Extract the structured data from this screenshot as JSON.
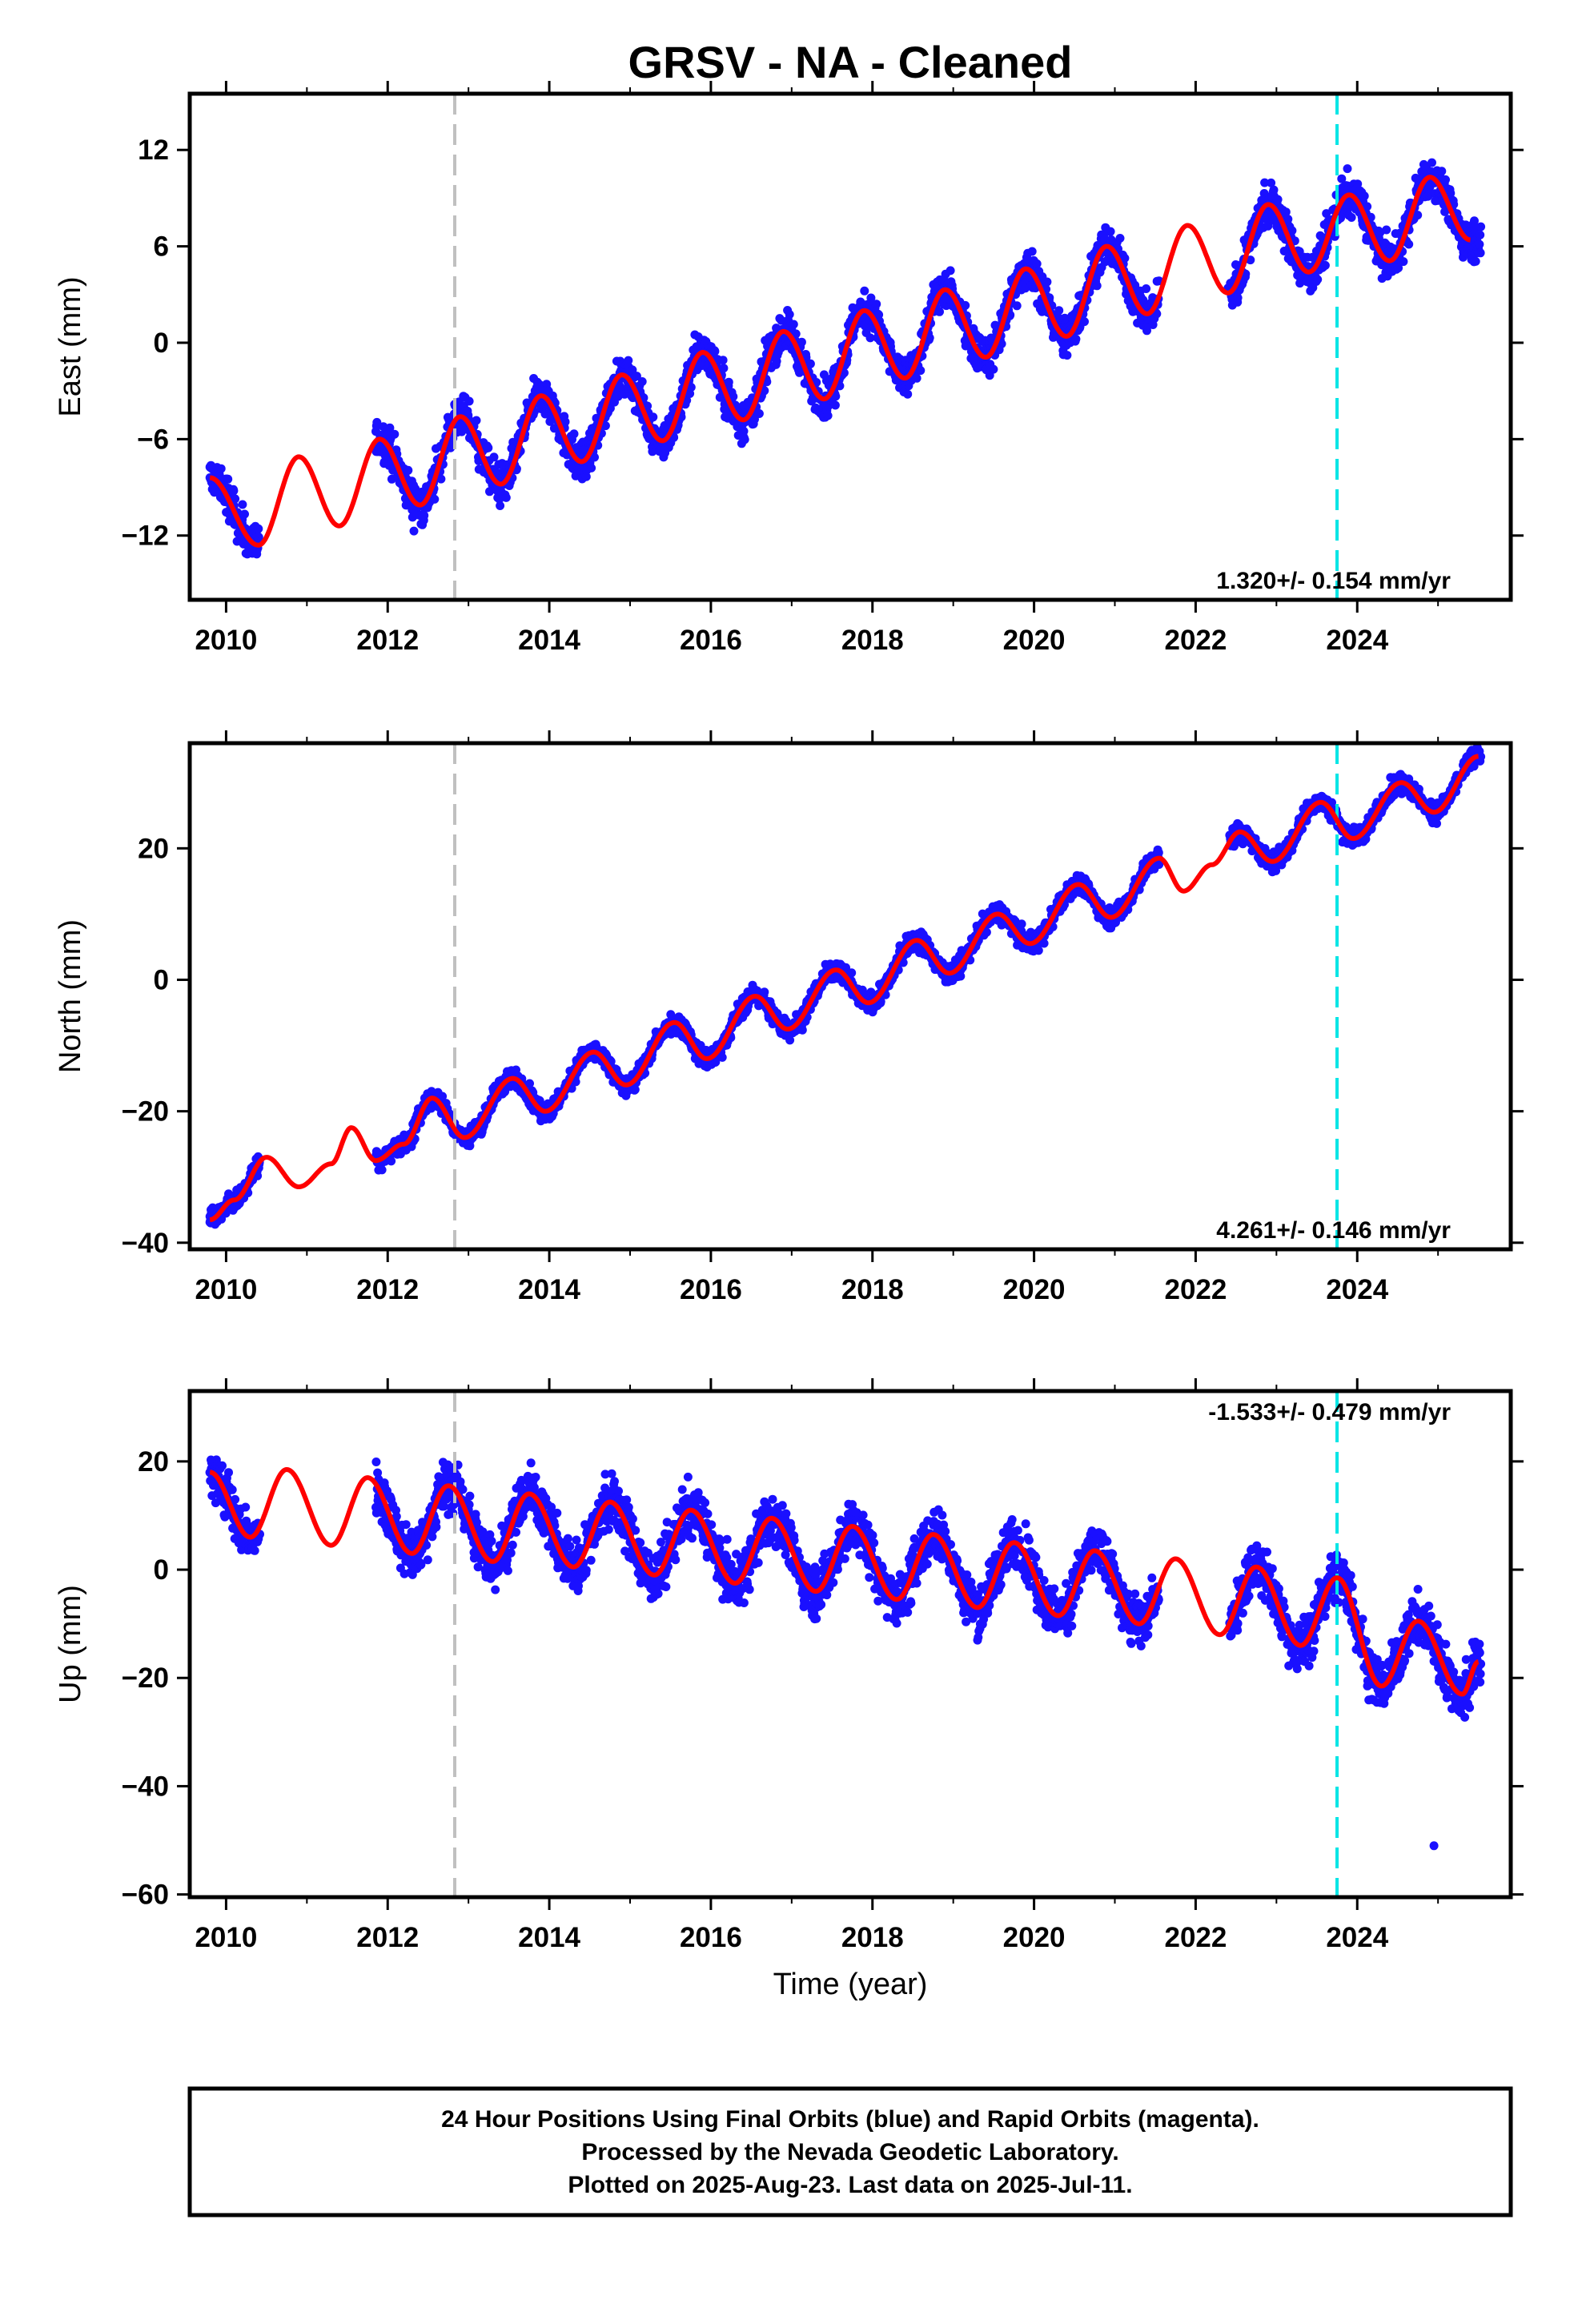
{
  "title": "GRSV  - NA - Cleaned",
  "colors": {
    "points": "#1a10ff",
    "model": "#ff0000",
    "event_gray": "#c0c0c0",
    "event_cyan": "#00e5e5"
  },
  "events": [
    {
      "year": 2012.83,
      "color": "#c0c0c0"
    },
    {
      "year": 2023.75,
      "color": "#00e5e5"
    }
  ],
  "x_axis": {
    "range": [
      2009.55,
      2025.9
    ],
    "ticks": [
      "2010",
      "2012",
      "2014",
      "2016",
      "2018",
      "2020",
      "2022",
      "2024"
    ],
    "label": "Time (year)"
  },
  "panels": [
    {
      "id": "east",
      "ylabel": "East (mm)",
      "ylim": [
        -16,
        15.5
      ],
      "yticks": [
        "12",
        "6",
        "0",
        "−6",
        "−12"
      ],
      "rate_text": "1.320+/- 0.154 mm/yr",
      "rate_pos": "bottom-right"
    },
    {
      "id": "north",
      "ylabel": "North (mm)",
      "ylim": [
        -41,
        36
      ],
      "yticks": [
        "20",
        "0",
        "−20",
        "−40"
      ],
      "rate_text": "4.261+/- 0.146 mm/yr",
      "rate_pos": "bottom-right"
    },
    {
      "id": "up",
      "ylabel": "Up (mm)",
      "ylim": [
        -60.5,
        33
      ],
      "yticks": [
        "20",
        "0",
        "−20",
        "−40",
        "−60"
      ],
      "rate_text": "-1.533+/- 0.479 mm/yr",
      "rate_pos": "top-right"
    }
  ],
  "footer": {
    "line1": "24 Hour Positions Using Final Orbits (blue) and Rapid Orbits (magenta).",
    "line2": "Processed by the Nevada Geodetic Laboratory.",
    "line3": "Plotted on 2025-Aug-23. Last data on 2025-Jul-11."
  },
  "chart_data": [
    {
      "type": "scatter",
      "title": "GRSV  - NA - Cleaned",
      "ylabel": "East (mm)",
      "xlabel": "",
      "ylim": [
        -16,
        15.5
      ],
      "grid": false,
      "series": [
        {
          "name": "24 Hour Positions Using Final Orbits (blue)",
          "x": [
            2009.8,
            2010.0,
            2010.2,
            2010.4,
            2012.0,
            2012.4,
            2012.9,
            2013.4,
            2013.9,
            2014.4,
            2014.9,
            2015.4,
            2015.9,
            2016.4,
            2016.9,
            2017.4,
            2017.9,
            2018.4,
            2018.9,
            2019.4,
            2019.9,
            2020.4,
            2020.9,
            2021.4,
            2022.4,
            2022.9,
            2023.4,
            2023.9,
            2024.4,
            2024.9,
            2025.4
          ],
          "y": [
            -8.4,
            -9.0,
            -11.0,
            -12.5,
            -6.4,
            -10.0,
            -5.0,
            -8.7,
            -3.6,
            -7.2,
            -2.2,
            -6.2,
            -0.8,
            -5.0,
            0.4,
            -3.6,
            1.8,
            -2.4,
            3.2,
            -1.0,
            4.6,
            0.4,
            6.0,
            1.8,
            3.4,
            8.6,
            4.4,
            9.4,
            5.2,
            10.4,
            6.4
          ]
        }
      ],
      "model": {
        "x": [
          2009.8,
          2010.4,
          2010.9,
          2011.4,
          2011.9,
          2012.4,
          2012.9,
          2013.4,
          2013.9,
          2014.4,
          2014.9,
          2015.4,
          2015.9,
          2016.4,
          2016.9,
          2017.4,
          2017.9,
          2018.4,
          2018.9,
          2019.4,
          2019.9,
          2020.4,
          2020.9,
          2021.4,
          2021.9,
          2022.4,
          2022.9,
          2023.4,
          2023.9,
          2024.4,
          2024.9,
          2025.4
        ],
        "y": [
          -8.4,
          -12.6,
          -7.1,
          -11.4,
          -6.0,
          -10.1,
          -4.6,
          -8.8,
          -3.3,
          -7.4,
          -2.0,
          -6.1,
          -0.6,
          -4.8,
          0.7,
          -3.5,
          2.0,
          -2.2,
          3.3,
          -0.9,
          4.6,
          0.4,
          6.0,
          1.8,
          7.3,
          3.1,
          8.6,
          4.4,
          9.2,
          5.1,
          10.3,
          6.4
        ]
      },
      "annotations": [
        "1.320+/- 0.154 mm/yr"
      ]
    },
    {
      "type": "scatter",
      "ylabel": "North (mm)",
      "xlabel": "",
      "ylim": [
        -41,
        36
      ],
      "grid": false,
      "series": [
        {
          "name": "24 Hour Positions Using Final Orbits (blue)",
          "x": [
            2009.8,
            2010.2,
            2012.0,
            2012.5,
            2013.0,
            2013.5,
            2014.0,
            2014.5,
            2015.0,
            2015.5,
            2016.0,
            2016.5,
            2017.0,
            2017.5,
            2018.0,
            2018.5,
            2019.0,
            2019.5,
            2020.0,
            2020.5,
            2021.0,
            2021.5,
            2022.5,
            2023.0,
            2023.5,
            2024.0,
            2024.5,
            2025.0,
            2025.5
          ],
          "y": [
            -36.0,
            -33.0,
            -26.0,
            -18.0,
            -23.5,
            -15.5,
            -19.5,
            -11.5,
            -15.5,
            -7.0,
            -11.5,
            -2.5,
            -7.0,
            2.0,
            -3.0,
            6.0,
            1.5,
            10.0,
            5.5,
            14.5,
            10.0,
            18.5,
            22.5,
            18.0,
            27.0,
            21.0,
            30.5,
            25.5,
            34.0
          ]
        }
      ],
      "model": {
        "x": [
          2009.8,
          2010.1,
          2010.5,
          2010.9,
          2011.3,
          2011.55,
          2011.85,
          2012.2,
          2012.55,
          2012.95,
          2013.55,
          2013.95,
          2014.55,
          2014.95,
          2015.55,
          2015.95,
          2016.55,
          2016.95,
          2017.55,
          2017.95,
          2018.55,
          2018.95,
          2019.55,
          2019.95,
          2020.55,
          2020.95,
          2021.55,
          2021.85,
          2022.2,
          2022.55,
          2022.95,
          2023.55,
          2023.95,
          2024.55,
          2024.95,
          2025.5
        ],
        "y": [
          -36.5,
          -33.5,
          -27.0,
          -31.5,
          -28.0,
          -22.5,
          -27.5,
          -25.0,
          -18.0,
          -24.0,
          -15.0,
          -20.0,
          -11.0,
          -16.0,
          -6.5,
          -12.0,
          -2.5,
          -7.5,
          1.5,
          -3.5,
          6.0,
          1.0,
          10.0,
          5.5,
          14.5,
          9.5,
          18.5,
          13.5,
          17.5,
          22.5,
          18.0,
          27.0,
          21.5,
          30.0,
          25.5,
          34.0
        ]
      },
      "annotations": [
        "4.261+/- 0.146 mm/yr"
      ]
    },
    {
      "type": "scatter",
      "ylabel": "Up (mm)",
      "xlabel": "Time (year)",
      "ylim": [
        -60.5,
        33
      ],
      "grid": false,
      "series": [
        {
          "name": "24 Hour Positions Using Final Orbits (blue)",
          "x": [
            2009.8,
            2010.3,
            2012.4,
            2012.8,
            2013.3,
            2013.7,
            2014.3,
            2014.7,
            2015.3,
            2015.7,
            2016.3,
            2016.7,
            2017.3,
            2017.7,
            2018.3,
            2018.7,
            2019.3,
            2019.7,
            2020.3,
            2020.7,
            2021.3,
            2022.7,
            2023.3,
            2023.7,
            2024.3,
            2024.7,
            2024.95,
            2025.3
          ],
          "y": [
            18.0,
            6.0,
            3.0,
            15.0,
            1.0,
            14.0,
            0.0,
            12.0,
            -2.0,
            11.0,
            -3.0,
            9.0,
            -5.0,
            8.0,
            -6.0,
            6.0,
            -8.0,
            4.0,
            -9.0,
            3.0,
            -10.0,
            0.0,
            -14.0,
            -1.0,
            -21.0,
            -10.0,
            -51.0,
            -23.0
          ]
        }
      ],
      "model": {
        "x": [
          2009.8,
          2010.3,
          2010.75,
          2011.3,
          2011.75,
          2012.3,
          2012.75,
          2013.3,
          2013.75,
          2014.3,
          2014.75,
          2015.3,
          2015.75,
          2016.3,
          2016.75,
          2017.3,
          2017.75,
          2018.3,
          2018.75,
          2019.3,
          2019.75,
          2020.3,
          2020.75,
          2021.3,
          2021.75,
          2022.3,
          2022.75,
          2023.3,
          2023.75,
          2024.3,
          2024.75,
          2025.3,
          2025.5
        ],
        "y": [
          18.0,
          6.0,
          18.5,
          4.5,
          17.0,
          3.0,
          15.5,
          1.5,
          14.0,
          0.5,
          12.5,
          -1.0,
          11.0,
          -2.5,
          9.5,
          -4.0,
          8.0,
          -5.5,
          6.5,
          -7.0,
          5.0,
          -8.5,
          3.5,
          -10.0,
          2.0,
          -12.0,
          0.5,
          -14.0,
          -1.5,
          -21.5,
          -9.5,
          -23.0,
          -17.0
        ]
      },
      "annotations": [
        "-1.533+/- 0.479 mm/yr"
      ]
    }
  ]
}
